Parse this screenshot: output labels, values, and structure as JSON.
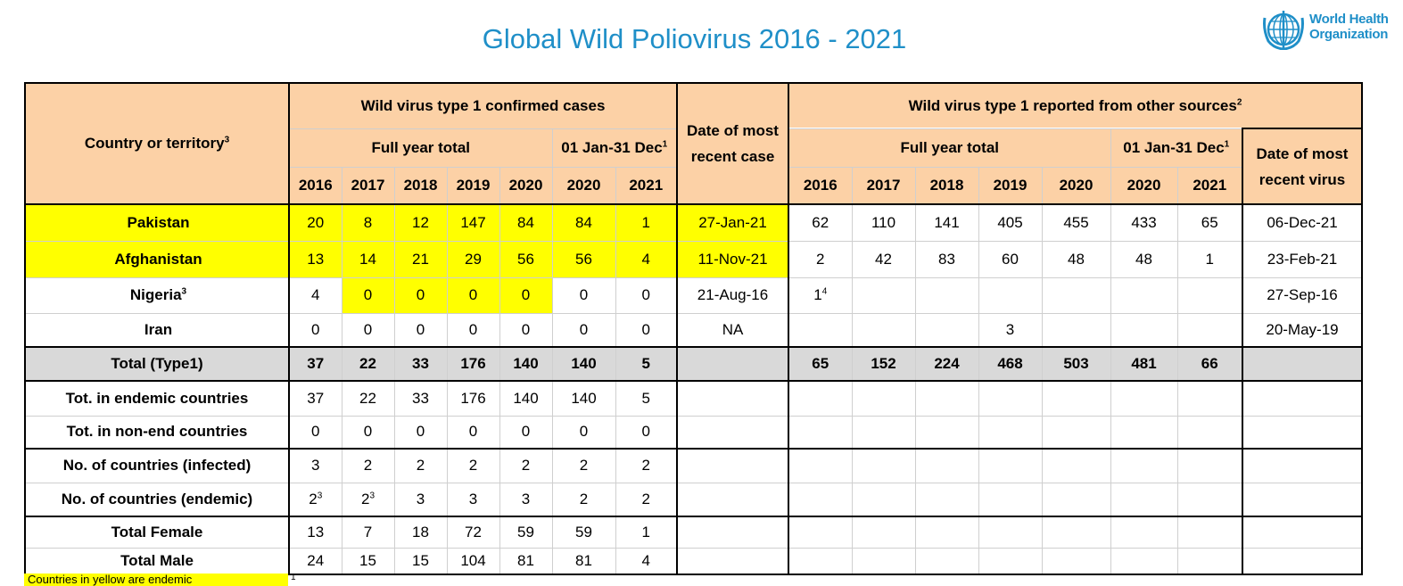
{
  "title": "Global Wild Poliovirus 2016 - 2021",
  "logo": {
    "line1": "World Health",
    "line2": "Organization",
    "icon": "who-emblem-icon"
  },
  "colors": {
    "header": "#fcd1a6",
    "highlight": "#ffff00",
    "total": "#d9d9d9",
    "title": "#1f8fc8"
  },
  "headers": {
    "country": "Country or territory",
    "country_sup": "3",
    "wpv_cases": "Wild virus type 1 confirmed cases",
    "other_sources": "Wild virus type 1 reported from other sources",
    "other_sources_sup": "2",
    "full_year_total": "Full year total",
    "period": "01 Jan-31 Dec",
    "period_sup": "1",
    "recent_case_1": "Date of most",
    "recent_case_2": "recent case",
    "recent_virus_1": "Date of most",
    "recent_virus_2": "recent virus",
    "years_full": [
      "2016",
      "2017",
      "2018",
      "2019",
      "2020"
    ],
    "years_period": [
      "2020",
      "2021"
    ]
  },
  "rows": [
    {
      "label": "Pakistan",
      "sup": "",
      "cases": [
        "20",
        "8",
        "12",
        "147",
        "84",
        "84",
        "1"
      ],
      "recent_case": "27-Jan-21",
      "other": [
        "62",
        "110",
        "141",
        "405",
        "455",
        "433",
        "65"
      ],
      "recent_virus": "06-Dec-21"
    },
    {
      "label": "Afghanistan",
      "sup": "",
      "cases": [
        "13",
        "14",
        "21",
        "29",
        "56",
        "56",
        "4"
      ],
      "recent_case": "11-Nov-21",
      "other": [
        "2",
        "42",
        "83",
        "60",
        "48",
        "48",
        "1"
      ],
      "recent_virus": "23-Feb-21"
    },
    {
      "label": "Nigeria",
      "sup": "3",
      "cases": [
        "4",
        "0",
        "0",
        "0",
        "0",
        "0",
        "0"
      ],
      "recent_case": "21-Aug-16",
      "other": [
        "1",
        "",
        "",
        "",
        "",
        "",
        ""
      ],
      "other_first_sup": "4",
      "recent_virus": "27-Sep-16"
    },
    {
      "label": "Iran",
      "sup": "",
      "cases": [
        "0",
        "0",
        "0",
        "0",
        "0",
        "0",
        "0"
      ],
      "recent_case": "NA",
      "other": [
        "",
        "",
        "",
        "3",
        "",
        "",
        ""
      ],
      "recent_virus": "20-May-19"
    }
  ],
  "total": {
    "label": "Total (Type1)",
    "cases": [
      "37",
      "22",
      "33",
      "176",
      "140",
      "140",
      "5"
    ],
    "other": [
      "65",
      "152",
      "224",
      "468",
      "503",
      "481",
      "66"
    ]
  },
  "summary": [
    {
      "label": "Tot. in endemic countries",
      "cases": [
        "37",
        "22",
        "33",
        "176",
        "140",
        "140",
        "5"
      ]
    },
    {
      "label": "Tot. in non-end countries",
      "cases": [
        "0",
        "0",
        "0",
        "0",
        "0",
        "0",
        "0"
      ]
    },
    {
      "label": "No. of countries (infected)",
      "cases": [
        "3",
        "2",
        "2",
        "2",
        "2",
        "2",
        "2"
      ]
    },
    {
      "label": "No. of countries (endemic)",
      "cases": [
        "2",
        "2",
        "3",
        "3",
        "3",
        "2",
        "2"
      ],
      "sups": [
        "3",
        "3",
        "",
        "",
        "",
        "",
        ""
      ]
    },
    {
      "label": "Total Female",
      "cases": [
        "13",
        "7",
        "18",
        "72",
        "59",
        "59",
        "1"
      ]
    },
    {
      "label": "Total Male",
      "cases": [
        "24",
        "15",
        "15",
        "104",
        "81",
        "81",
        "4"
      ]
    }
  ],
  "footnote": {
    "text": "Countries in yellow are endemic",
    "sup": "1"
  }
}
